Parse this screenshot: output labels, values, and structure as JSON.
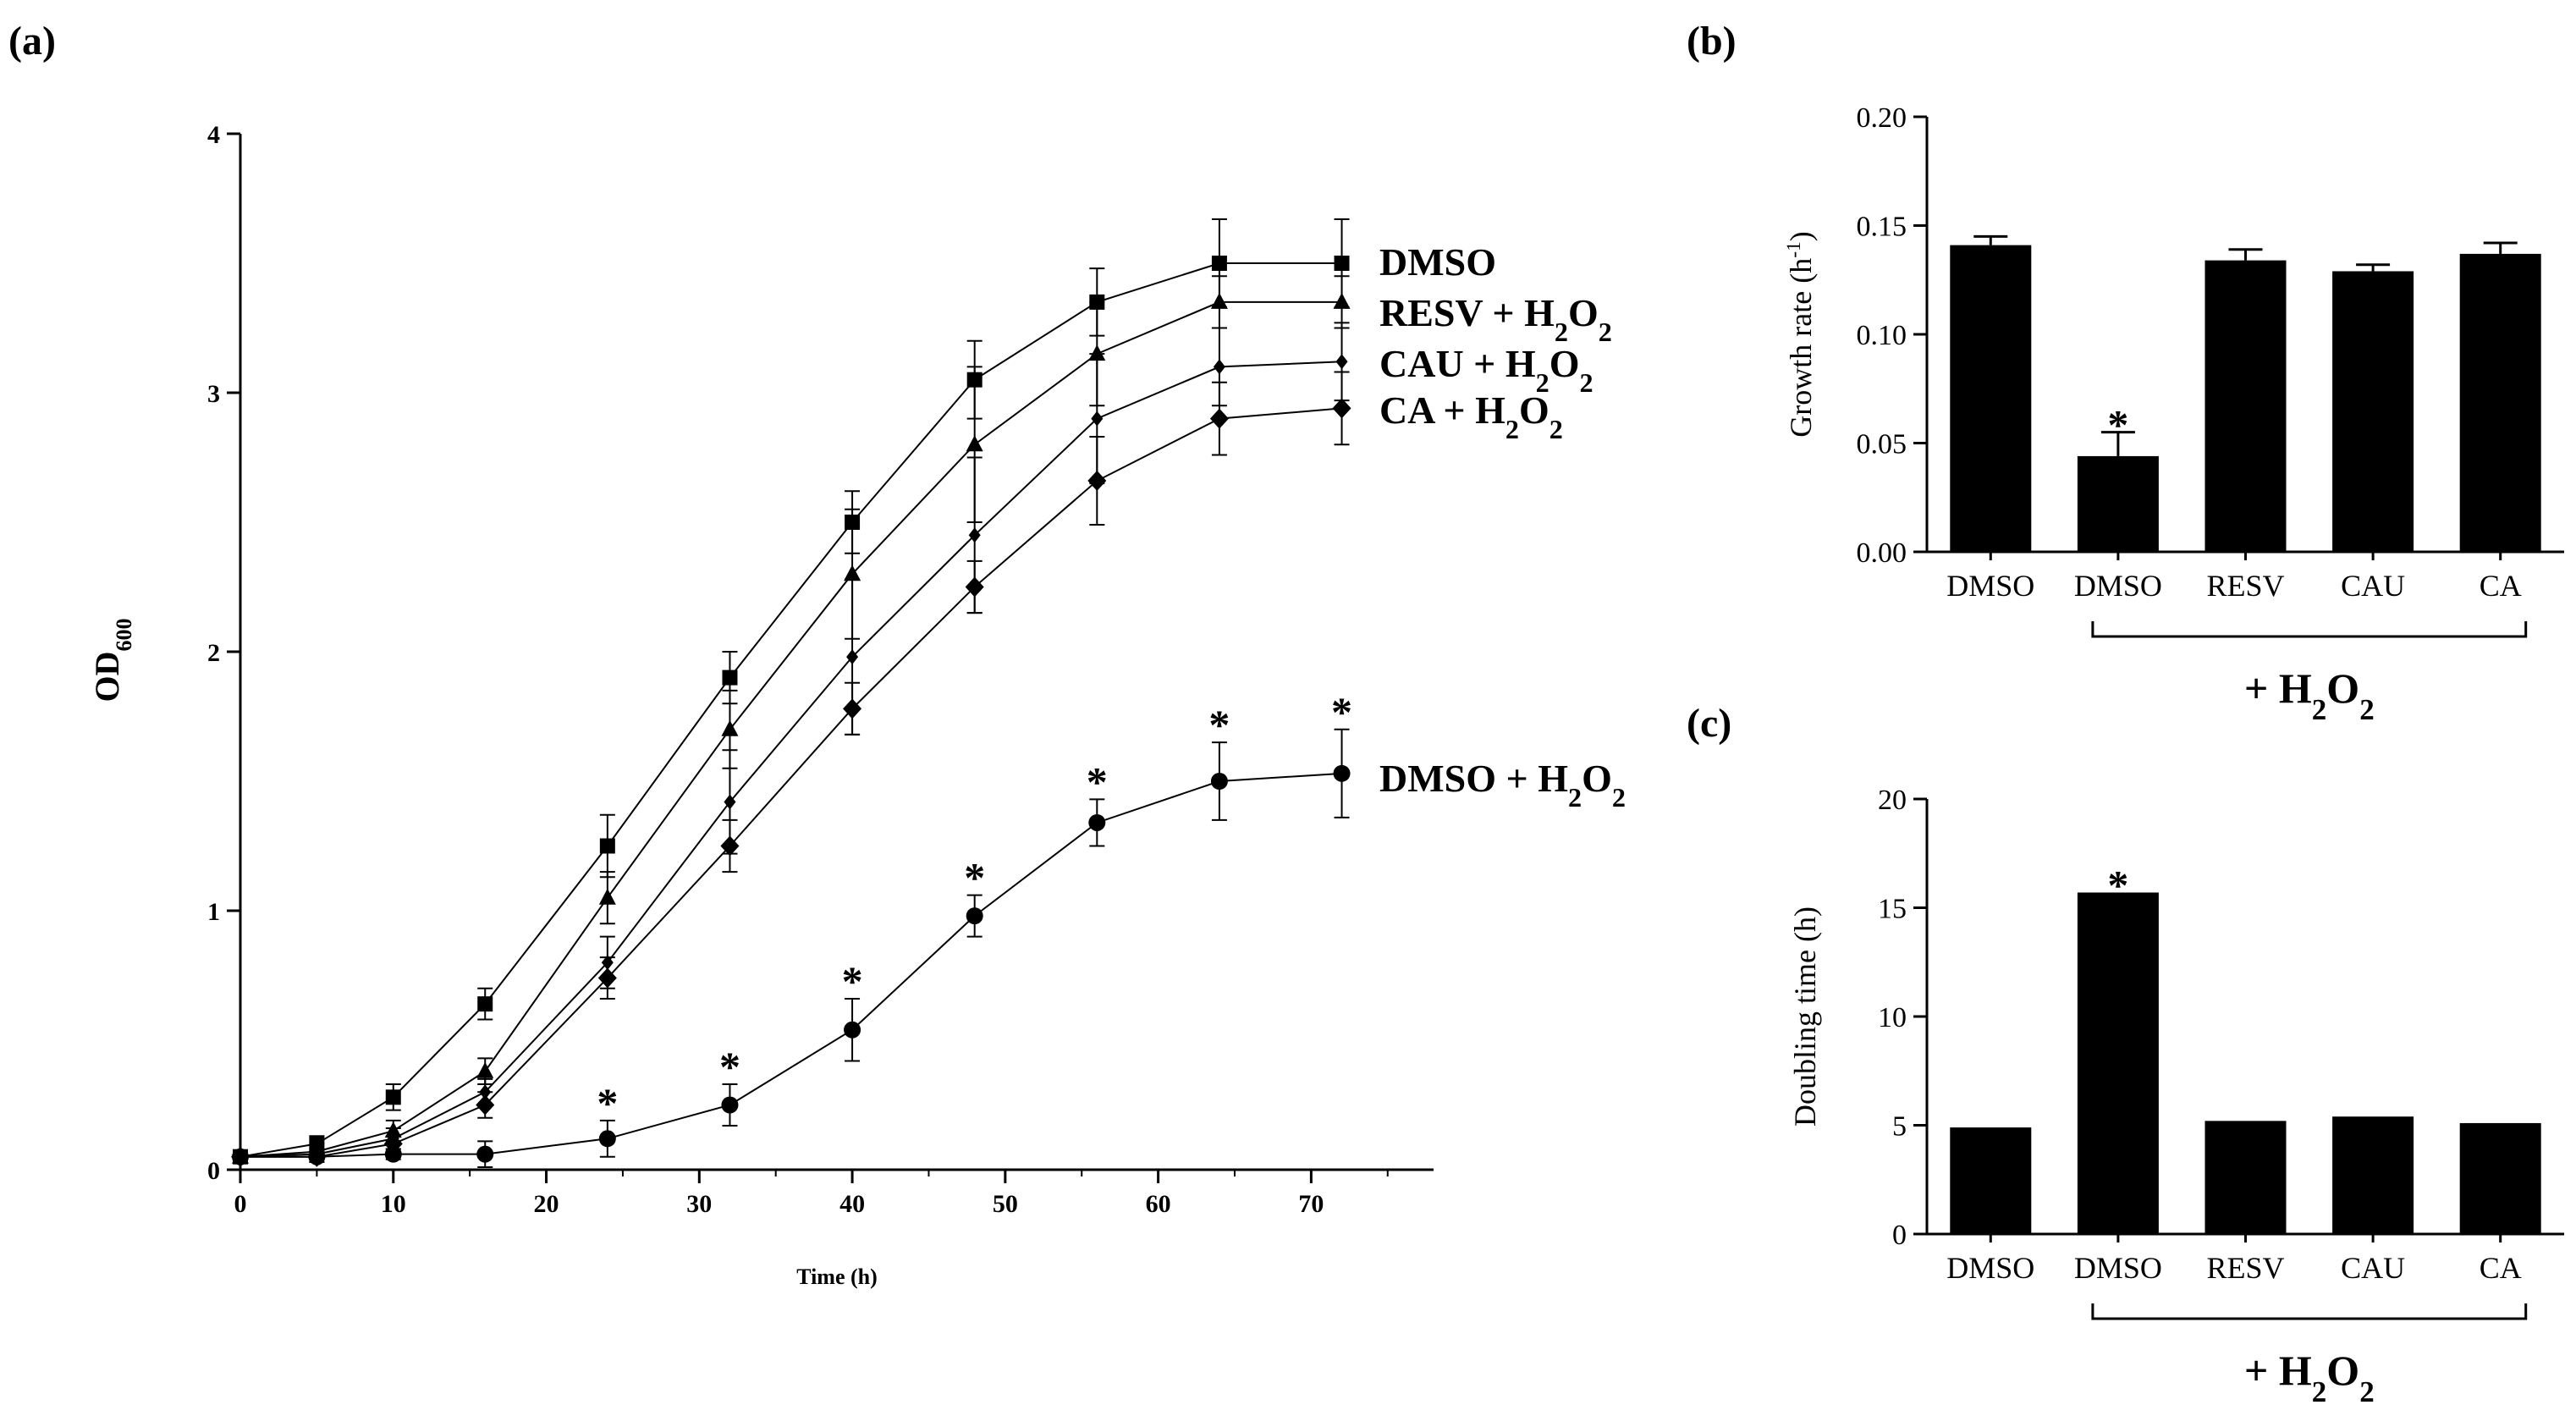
{
  "chart_data": [
    {
      "panel": "(a)",
      "type": "line",
      "xlabel": "Time (h)",
      "ylabel": "OD600",
      "xlim": [
        0,
        78
      ],
      "ylim": [
        0,
        4
      ],
      "xticks": [
        0,
        10,
        20,
        30,
        40,
        50,
        60,
        70
      ],
      "yticks": [
        0,
        1,
        2,
        3,
        4
      ],
      "x": [
        0,
        5,
        10,
        16,
        24,
        32,
        40,
        48,
        56,
        64,
        72
      ],
      "series": [
        {
          "name": "DMSO",
          "marker": "square",
          "legend_main": "DMSO",
          "legend_suffix": "",
          "values": [
            0.05,
            0.1,
            0.28,
            0.64,
            1.25,
            1.9,
            2.5,
            3.05,
            3.35,
            3.5,
            3.5
          ],
          "errors": [
            0.02,
            0.03,
            0.05,
            0.06,
            0.12,
            0.1,
            0.12,
            0.15,
            0.13,
            0.17,
            0.17
          ]
        },
        {
          "name": "RESV + H2O2",
          "marker": "triangle",
          "legend_main": "RESV",
          "legend_suffix": "+ H2O2",
          "values": [
            0.05,
            0.07,
            0.15,
            0.38,
            1.05,
            1.7,
            2.3,
            2.8,
            3.15,
            3.35,
            3.35
          ],
          "errors": [
            0.02,
            0.03,
            0.04,
            0.05,
            0.1,
            0.15,
            0.25,
            0.3,
            0.2,
            0.1,
            0.1
          ]
        },
        {
          "name": "CAU + H2O2",
          "marker": "diamond-small",
          "legend_main": "CAU",
          "legend_suffix": "+ H2O2",
          "values": [
            0.05,
            0.06,
            0.12,
            0.3,
            0.8,
            1.42,
            1.98,
            2.45,
            2.9,
            3.1,
            3.12
          ],
          "errors": [
            0.02,
            0.02,
            0.04,
            0.05,
            0.1,
            0.2,
            0.3,
            0.3,
            0.25,
            0.15,
            0.15
          ]
        },
        {
          "name": "CA + H2O2",
          "marker": "diamond",
          "legend_main": "CA",
          "legend_suffix": "+ H2O2",
          "values": [
            0.05,
            0.05,
            0.1,
            0.25,
            0.74,
            1.25,
            1.78,
            2.25,
            2.66,
            2.9,
            2.94
          ],
          "errors": [
            0.02,
            0.02,
            0.03,
            0.05,
            0.08,
            0.1,
            0.1,
            0.1,
            0.17,
            0.14,
            0.14
          ]
        },
        {
          "name": "DMSO + H2O2",
          "marker": "circle",
          "legend_main": "DMSO",
          "legend_suffix": "+ H2O2",
          "values": [
            0.05,
            0.05,
            0.06,
            0.06,
            0.12,
            0.25,
            0.54,
            0.98,
            1.34,
            1.5,
            1.53
          ],
          "errors": [
            0.02,
            0.02,
            0.02,
            0.05,
            0.07,
            0.08,
            0.12,
            0.08,
            0.09,
            0.15,
            0.17
          ],
          "significant_x": [
            24,
            32,
            40,
            48,
            56,
            64,
            72
          ]
        }
      ],
      "annotation": "*"
    },
    {
      "panel": "(b)",
      "type": "bar",
      "ylabel": "Growth rate (h-1)",
      "categories": [
        "DMSO",
        "DMSO",
        "RESV",
        "CAU",
        "CA"
      ],
      "values": [
        0.141,
        0.044,
        0.134,
        0.129,
        0.137
      ],
      "errors": [
        0.004,
        0.011,
        0.005,
        0.003,
        0.005
      ],
      "ylim": [
        0,
        0.2
      ],
      "yticks": [
        0.0,
        0.05,
        0.1,
        0.15,
        0.2
      ],
      "ytick_labels": [
        "0.00",
        "0.05",
        "0.10",
        "0.15",
        "0.20"
      ],
      "significant": [
        1
      ],
      "group_label": "+ H2O2",
      "group_indices": [
        1,
        4
      ],
      "annotation": "*"
    },
    {
      "panel": "(c)",
      "type": "bar",
      "ylabel": "Doubling time (h)",
      "categories": [
        "DMSO",
        "DMSO",
        "RESV",
        "CAU",
        "CA"
      ],
      "values": [
        4.9,
        15.7,
        5.2,
        5.4,
        5.1
      ],
      "ylim": [
        0,
        20
      ],
      "yticks": [
        0,
        5,
        10,
        15,
        20
      ],
      "ytick_labels": [
        "0",
        "5",
        "10",
        "15",
        "20"
      ],
      "significant": [
        1
      ],
      "group_label": "+ H2O2",
      "group_indices": [
        1,
        4
      ],
      "annotation": "*"
    }
  ]
}
